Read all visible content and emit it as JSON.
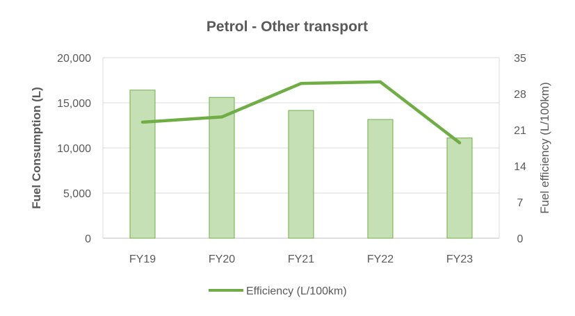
{
  "chart_data": {
    "type": "bar",
    "title": "Petrol - Other transport",
    "categories": [
      "FY19",
      "FY20",
      "FY21",
      "FY22",
      "FY23"
    ],
    "ylabel": "Fuel Consumption (L)",
    "y2label": "Fuel efficiency (L/100km)",
    "ylim": [
      0,
      20000
    ],
    "y2lim": [
      0,
      35
    ],
    "yticks": [
      "0",
      "5,000",
      "10,000",
      "15,000",
      "20,000"
    ],
    "y2ticks": [
      "0",
      "7",
      "14",
      "21",
      "28",
      "35"
    ],
    "series": [
      {
        "type": "bar",
        "axis": "left",
        "values": [
          16400,
          15600,
          14150,
          13150,
          11100
        ],
        "fill": "#c5e0b4",
        "stroke": "#70ad47"
      },
      {
        "type": "line",
        "axis": "right",
        "name": "Efficiency (L/100km)",
        "values": [
          22.5,
          23.5,
          30.0,
          30.3,
          18.5
        ],
        "color": "#70ad47"
      }
    ],
    "grid": true,
    "legend": "bottom"
  }
}
